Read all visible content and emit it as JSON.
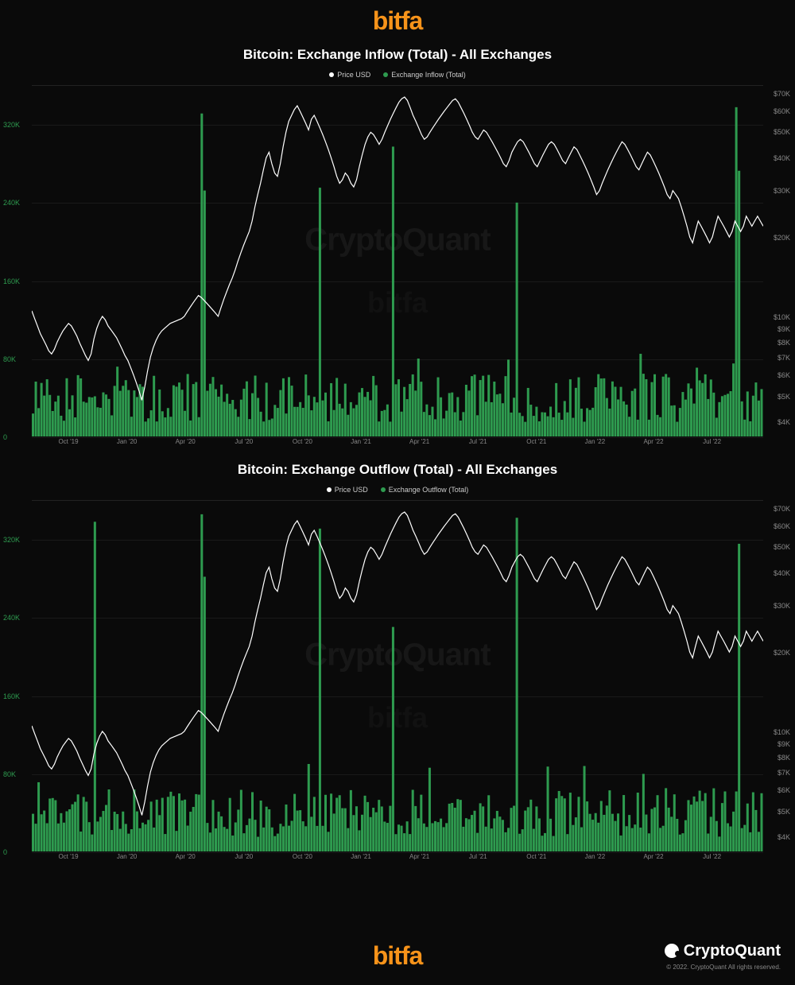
{
  "brand": {
    "logo_text": "bitfa",
    "logo_color": "#f7931a"
  },
  "watermarks": {
    "primary": "CryptoQuant",
    "secondary": "bitfa"
  },
  "footer": {
    "provider": "CryptoQuant",
    "copyright": "© 2022. CryptoQuant All rights reserved."
  },
  "colors": {
    "background": "#0a0a0a",
    "grid": "#1a1a1a",
    "price_line": "#ffffff",
    "bars": "#2e9b4f",
    "text": "#ffffff",
    "muted": "#888888",
    "left_axis": "#2e9b4f"
  },
  "x_axis": {
    "labels": [
      "Oct '19",
      "Jan '20",
      "Apr '20",
      "Jul '20",
      "Oct '20",
      "Jan '21",
      "Apr '21",
      "Jul '21",
      "Oct '21",
      "Jan '22",
      "Apr '22",
      "Jul '22"
    ],
    "positions_pct": [
      5,
      13,
      21,
      29,
      37,
      45,
      53,
      61,
      69,
      77,
      85,
      93
    ]
  },
  "charts": [
    {
      "title": "Bitcoin: Exchange Inflow (Total) - All Exchanges",
      "legend": [
        {
          "label": "Price USD",
          "color": "#ffffff"
        },
        {
          "label": "Exchange Inflow (Total)",
          "color": "#2e9b4f"
        }
      ],
      "left_axis": {
        "ticks": [
          0,
          80000,
          160000,
          240000,
          320000
        ],
        "labels": [
          "0",
          "80K",
          "160K",
          "240K",
          "320K"
        ],
        "min": 0,
        "max": 360000
      },
      "right_axis": {
        "ticks": [
          4000,
          5000,
          6000,
          7000,
          8000,
          9000,
          10000,
          20000,
          30000,
          40000,
          50000,
          60000,
          70000
        ],
        "labels": [
          "$4K",
          "$5K",
          "$6K",
          "$7K",
          "$8K",
          "$9K",
          "$10K",
          "$20K",
          "$30K",
          "$40K",
          "$50K",
          "$60K",
          "$70K"
        ],
        "min": 3500,
        "max": 75000,
        "scale": "log"
      },
      "bar_seed": 1,
      "spike_indices": [
        60,
        61,
        102,
        128,
        172,
        250,
        251
      ]
    },
    {
      "title": "Bitcoin: Exchange Outflow (Total) - All Exchanges",
      "legend": [
        {
          "label": "Price USD",
          "color": "#ffffff"
        },
        {
          "label": "Exchange Outflow (Total)",
          "color": "#2e9b4f"
        }
      ],
      "left_axis": {
        "ticks": [
          0,
          80000,
          160000,
          240000,
          320000
        ],
        "labels": [
          "0",
          "80K",
          "160K",
          "240K",
          "320K"
        ],
        "min": 0,
        "max": 360000
      },
      "right_axis": {
        "ticks": [
          4000,
          5000,
          6000,
          7000,
          8000,
          9000,
          10000,
          20000,
          30000,
          40000,
          50000,
          60000,
          70000
        ],
        "labels": [
          "$4K",
          "$5K",
          "$6K",
          "$7K",
          "$8K",
          "$9K",
          "$10K",
          "$20K",
          "$30K",
          "$40K",
          "$50K",
          "$60K",
          "$70K"
        ],
        "min": 3500,
        "max": 75000,
        "scale": "log"
      },
      "bar_seed": 2,
      "spike_indices": [
        22,
        60,
        61,
        102,
        128,
        172,
        251
      ]
    }
  ],
  "price_series": [
    10500,
    9800,
    9200,
    8600,
    8200,
    7800,
    7400,
    7200,
    7500,
    8000,
    8400,
    8800,
    9100,
    9400,
    9200,
    8800,
    8400,
    7900,
    7500,
    7100,
    6800,
    7200,
    8200,
    9000,
    9600,
    10000,
    9700,
    9200,
    8900,
    8600,
    8300,
    7900,
    7500,
    7100,
    6800,
    6400,
    6000,
    5600,
    5200,
    4800,
    5400,
    6200,
    7000,
    7600,
    8100,
    8500,
    8800,
    9000,
    9200,
    9400,
    9500,
    9600,
    9700,
    9800,
    10000,
    10400,
    10800,
    11200,
    11600,
    12000,
    11800,
    11500,
    11200,
    10900,
    10600,
    10300,
    10000,
    10800,
    11600,
    12400,
    13200,
    14000,
    15000,
    16200,
    17400,
    18600,
    19800,
    21000,
    23000,
    26000,
    29000,
    32000,
    36000,
    40000,
    42000,
    38000,
    35000,
    34000,
    38000,
    44000,
    50000,
    55000,
    58000,
    61000,
    63000,
    60000,
    57000,
    54000,
    51000,
    56000,
    58000,
    55000,
    52000,
    49000,
    46000,
    43000,
    40000,
    37000,
    34000,
    32000,
    33000,
    35000,
    34000,
    32000,
    31000,
    33000,
    37000,
    41000,
    45000,
    48000,
    50000,
    49000,
    47000,
    45000,
    47000,
    50000,
    53000,
    56000,
    59000,
    62000,
    65000,
    67000,
    68000,
    66000,
    62000,
    58000,
    55000,
    52000,
    49000,
    47000,
    48000,
    50000,
    52000,
    54000,
    56000,
    58000,
    60000,
    62000,
    64000,
    66000,
    67000,
    65000,
    62000,
    59000,
    56000,
    53000,
    50000,
    48000,
    47000,
    49000,
    51000,
    50000,
    48000,
    46000,
    44000,
    42000,
    40000,
    38000,
    37000,
    39000,
    42000,
    44000,
    46000,
    47000,
    46000,
    44000,
    42000,
    40000,
    38000,
    37000,
    39000,
    41000,
    43000,
    45000,
    46000,
    45000,
    43000,
    41000,
    39000,
    38000,
    40000,
    42000,
    44000,
    43000,
    41000,
    39000,
    37000,
    35000,
    33000,
    31000,
    29000,
    30000,
    32000,
    34000,
    36000,
    38000,
    40000,
    42000,
    44000,
    46000,
    45000,
    43000,
    41000,
    39000,
    37000,
    36000,
    38000,
    40000,
    42000,
    41000,
    39000,
    37000,
    35000,
    33000,
    31000,
    29000,
    28000,
    30000,
    29000,
    28000,
    26000,
    24000,
    22000,
    20000,
    19000,
    21000,
    23000,
    22000,
    21000,
    20000,
    19000,
    20000,
    22000,
    24000,
    23000,
    22000,
    21000,
    20000,
    21000,
    23000,
    22000,
    21000,
    22000,
    24000,
    23000,
    22000,
    23000,
    24000,
    23000,
    22000
  ]
}
